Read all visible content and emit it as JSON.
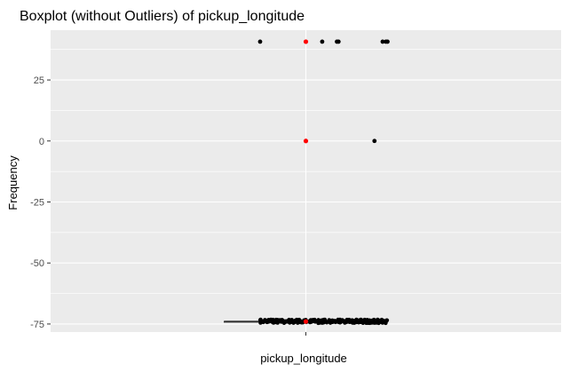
{
  "chart_data": {
    "type": "boxplot",
    "title": "Boxplot (without Outliers) of  pickup_longitude",
    "xlabel": "pickup_longitude",
    "ylabel": "Frequency",
    "categories": [
      "pickup_longitude"
    ],
    "yticks": [
      25,
      0,
      -25,
      -50,
      -75
    ],
    "ylim": [
      -78.3,
      45.4
    ],
    "grid": true,
    "box": {
      "median": -73.98,
      "q1": -73.99,
      "q3": -73.97,
      "mean": -73.98
    },
    "series": [
      {
        "values_x": [
          -0.28,
          0.1,
          0.19,
          0.2,
          0.47,
          0.49,
          0.5,
          0.42
        ],
        "values_y": [
          40.7,
          40.7,
          40.7,
          40.7,
          40.7,
          40.7,
          40.7,
          0
        ]
      }
    ],
    "mean_points": [
      40.7,
      0,
      -73.98
    ],
    "jitter_band": {
      "y": -73.9,
      "x_range": [
        -0.5,
        0.5
      ]
    },
    "colors": {
      "panel": "#ebebeb",
      "grid": "#ffffff",
      "points": "#000000",
      "mean": "#ff0000"
    }
  }
}
